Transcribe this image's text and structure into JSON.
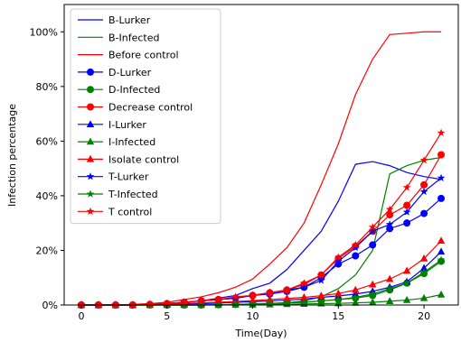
{
  "chart_data": {
    "type": "line",
    "title": "",
    "xlabel": "Time(Day)",
    "ylabel": "Infection percentage",
    "xlim": [
      -1,
      22
    ],
    "ylim": [
      0,
      110
    ],
    "x": [
      0,
      1,
      2,
      3,
      4,
      5,
      6,
      7,
      8,
      9,
      10,
      11,
      12,
      13,
      14,
      15,
      16,
      17,
      18,
      19,
      20,
      21
    ],
    "xticks": [
      0,
      5,
      10,
      15,
      20
    ],
    "xtick_labels": [
      "0",
      "5",
      "10",
      "15",
      "20"
    ],
    "yticks": [
      0,
      20,
      40,
      60,
      80,
      100
    ],
    "ytick_labels": [
      "0%",
      "20%",
      "40%",
      "60%",
      "80%",
      "100%"
    ],
    "grid": false,
    "legend_position": "top-left",
    "series": [
      {
        "name": "B-Lurker",
        "color": "#0000ff",
        "marker": "none",
        "values": [
          0,
          0,
          0,
          0.1,
          0.3,
          0.6,
          1,
          1.5,
          2.5,
          3.5,
          6,
          8,
          13,
          20,
          27,
          38,
          51.5,
          52.5,
          51,
          48.5,
          47,
          46
        ]
      },
      {
        "name": "B-Infected",
        "color": "#008000",
        "marker": "none",
        "values": [
          0,
          0,
          0,
          0,
          0,
          0,
          0,
          0,
          0.1,
          0.2,
          0.3,
          0.5,
          0.8,
          1.5,
          3,
          6,
          11,
          20,
          48,
          51,
          53,
          54
        ]
      },
      {
        "name": "Before control",
        "color": "#ff0000",
        "marker": "none",
        "values": [
          0,
          0,
          0,
          0.2,
          0.5,
          1,
          2,
          3,
          4.5,
          6.5,
          9.5,
          15,
          21,
          30,
          44,
          59,
          77,
          90,
          99,
          99.5,
          100,
          100
        ]
      },
      {
        "name": "D-Lurker",
        "color": "#0000ff",
        "marker": "circle",
        "values": [
          0,
          0,
          0,
          0,
          0.2,
          0.5,
          1,
          1.5,
          2,
          2.5,
          3.5,
          4,
          5,
          6.5,
          10,
          15,
          18,
          22,
          28,
          30,
          33.5,
          39
        ]
      },
      {
        "name": "D-Infected",
        "color": "#008000",
        "marker": "circle",
        "values": [
          0,
          0,
          0,
          0,
          0,
          0,
          0,
          0,
          0.1,
          0.2,
          0.4,
          0.6,
          0.8,
          1,
          1.5,
          2,
          2.5,
          3.5,
          5.5,
          8,
          11.5,
          16
        ]
      },
      {
        "name": "Decrease control",
        "color": "#ff0000",
        "marker": "circle",
        "values": [
          0,
          0,
          0,
          0,
          0.2,
          0.5,
          1,
          1.5,
          2,
          2.5,
          3.5,
          4.5,
          5.5,
          7.5,
          11,
          17,
          21.5,
          27,
          33,
          36.5,
          44,
          55
        ]
      },
      {
        "name": "I-Lurker",
        "color": "#0000ff",
        "marker": "triangle",
        "values": [
          0,
          0,
          0,
          0,
          0.1,
          0.2,
          0.3,
          0.5,
          0.7,
          1,
          1.2,
          1.5,
          1.8,
          2.2,
          2.8,
          3.3,
          4,
          5,
          6.5,
          8.5,
          13.5,
          19.5
        ]
      },
      {
        "name": "I-Infected",
        "color": "#008000",
        "marker": "triangle",
        "values": [
          0,
          0,
          0,
          0,
          0,
          0,
          0,
          0,
          0,
          0.1,
          0.1,
          0.2,
          0.3,
          0.4,
          0.5,
          0.6,
          0.8,
          1,
          1.4,
          1.8,
          2.5,
          3.8
        ]
      },
      {
        "name": "Isolate control",
        "color": "#ff0000",
        "marker": "triangle",
        "values": [
          0,
          0,
          0,
          0,
          0.2,
          0.4,
          0.6,
          0.8,
          1,
          1.3,
          1.6,
          2,
          2.4,
          2.8,
          3.4,
          4.2,
          5.5,
          7.5,
          9.5,
          12.5,
          17,
          23.5
        ]
      },
      {
        "name": "T-Lurker",
        "color": "#0000ff",
        "marker": "star",
        "values": [
          0,
          0,
          0,
          0,
          0.2,
          0.5,
          1,
          1.5,
          2,
          2.5,
          3.5,
          4.5,
          5.5,
          6.5,
          9,
          16,
          21,
          27,
          29.5,
          34,
          41.5,
          46.5
        ]
      },
      {
        "name": "T-Infected",
        "color": "#008000",
        "marker": "star",
        "values": [
          0,
          0,
          0,
          0,
          0,
          0,
          0,
          0,
          0.1,
          0.2,
          0.4,
          0.6,
          0.8,
          1,
          1.5,
          2,
          2.8,
          4,
          6,
          8,
          12,
          16.5
        ]
      },
      {
        "name": "T control",
        "color": "#ff0000",
        "marker": "star",
        "values": [
          0,
          0,
          0,
          0,
          0.2,
          0.5,
          1,
          1.5,
          2,
          3,
          3.5,
          4.5,
          5.5,
          8,
          11,
          17.5,
          22,
          28.5,
          35,
          43,
          53,
          63
        ]
      }
    ]
  }
}
